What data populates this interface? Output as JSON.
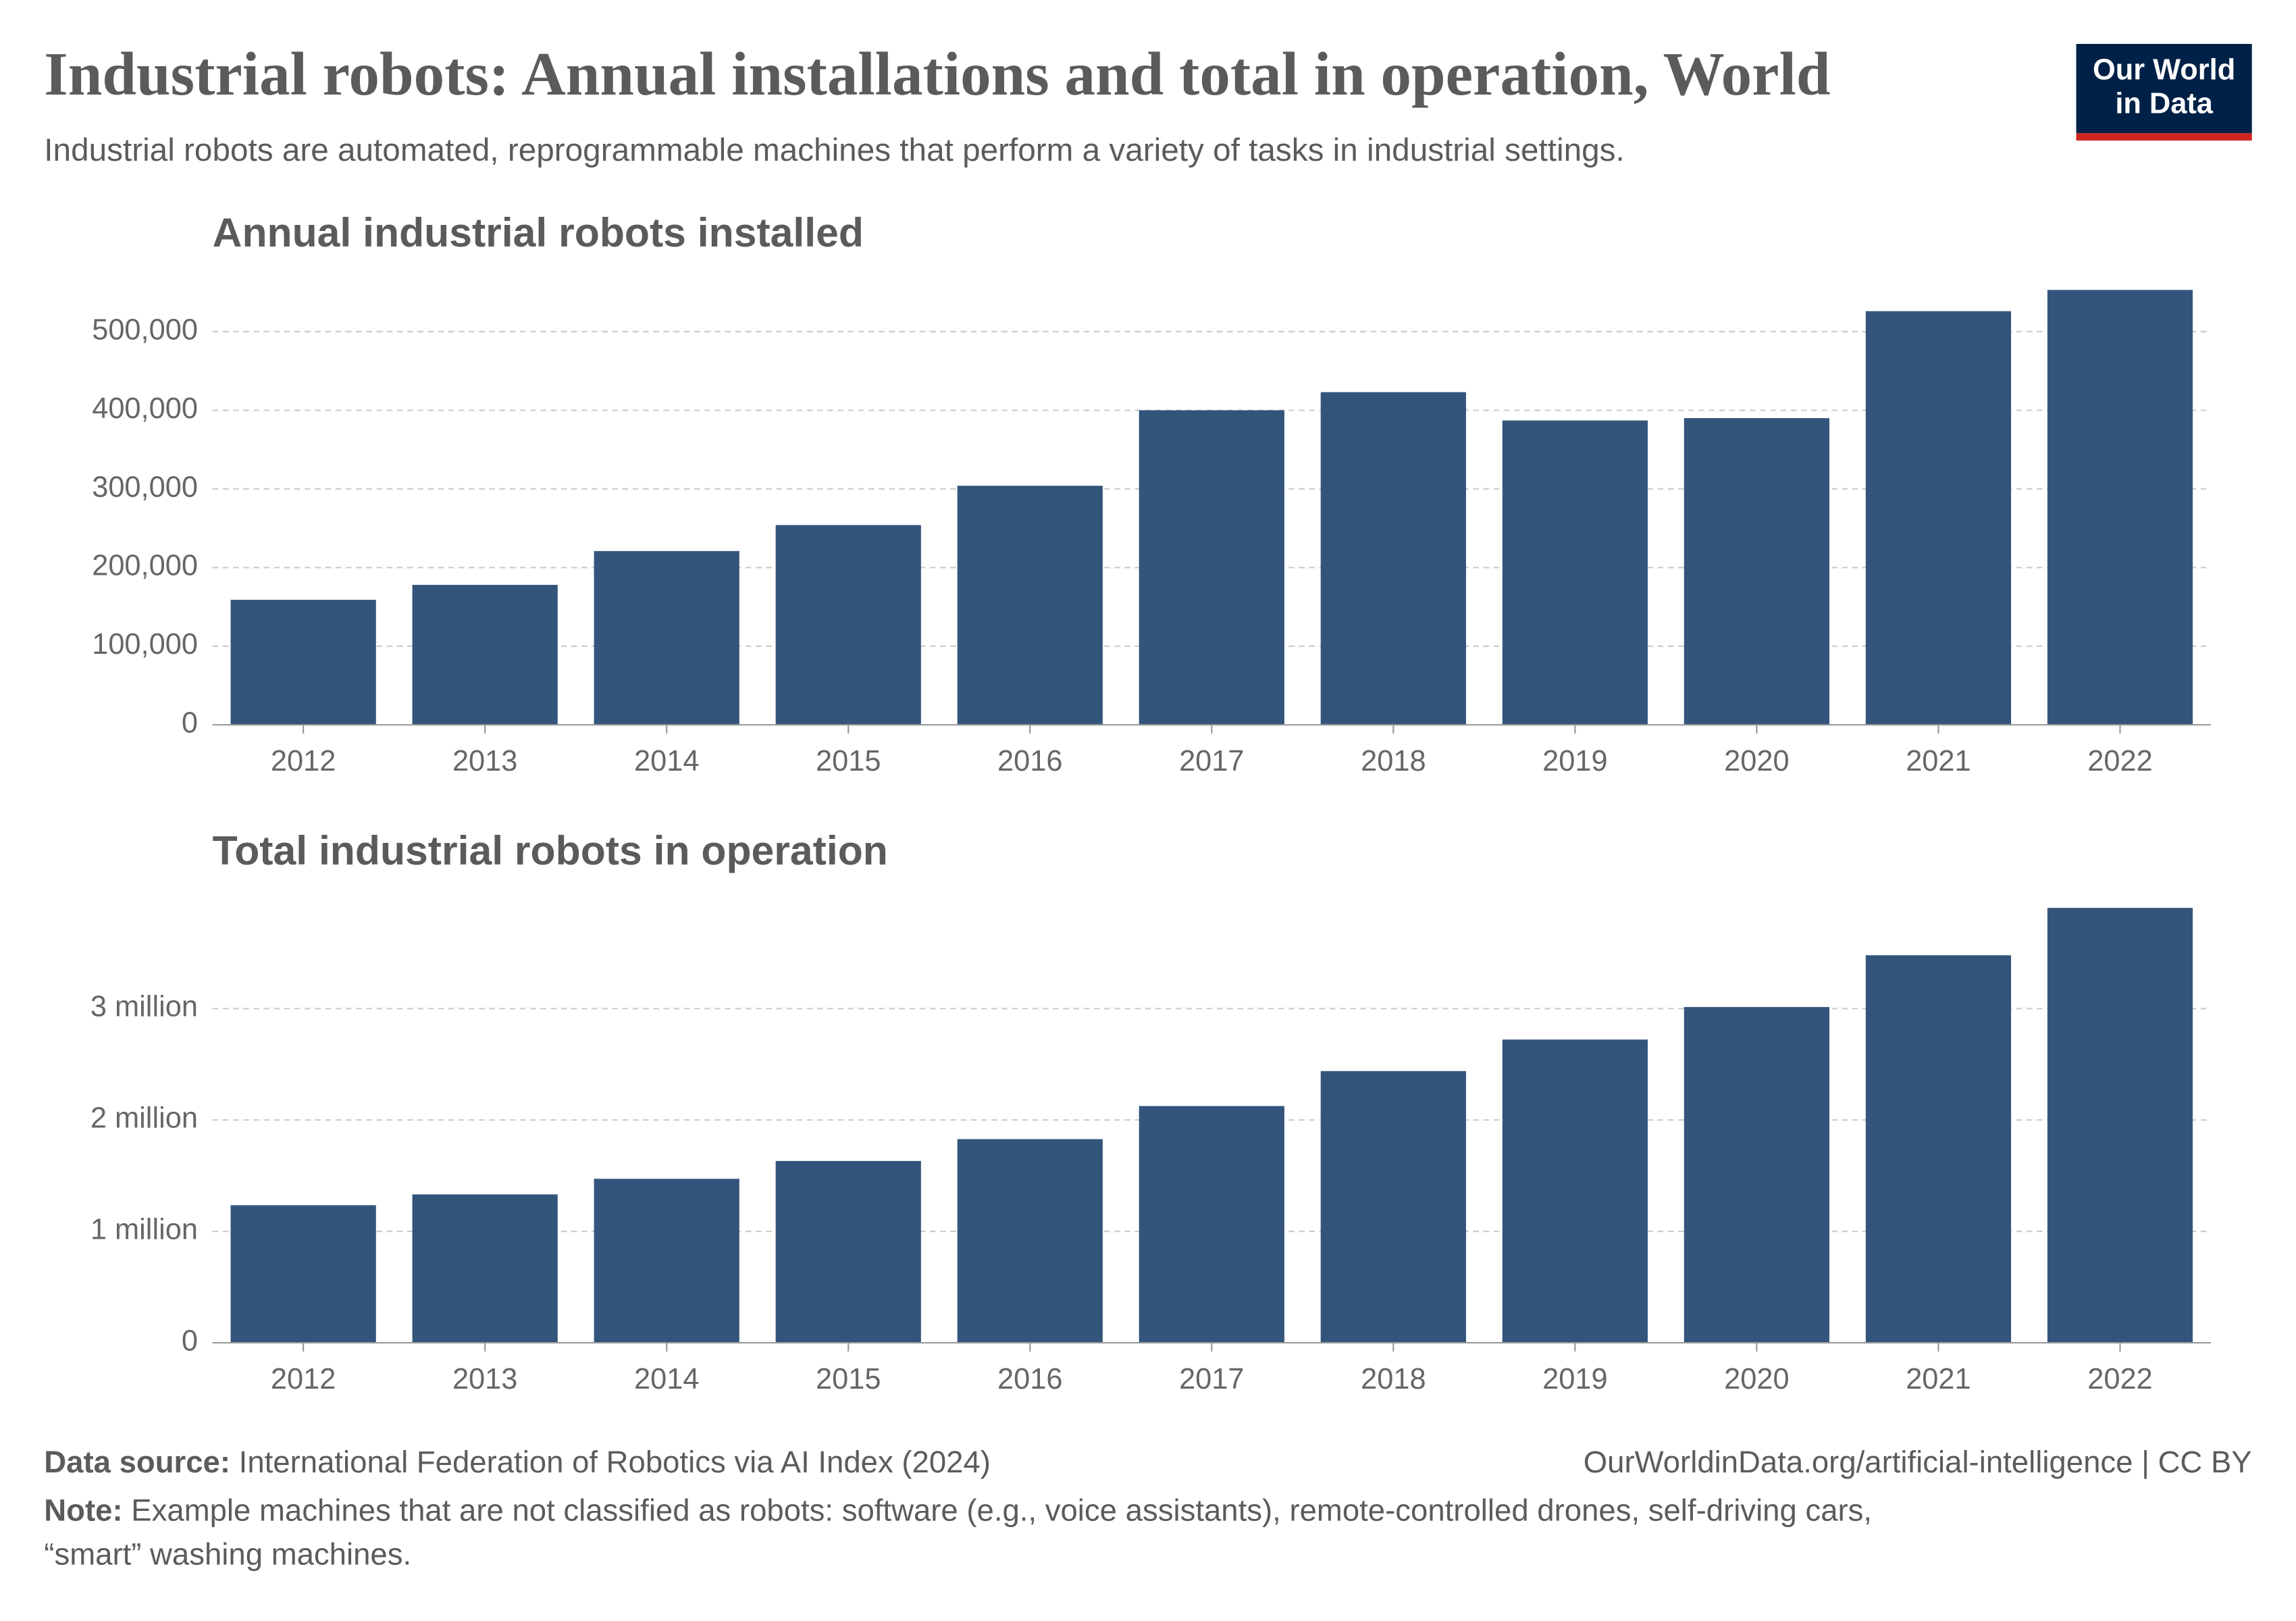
{
  "header": {
    "title": "Industrial robots: Annual installations and total in operation, World",
    "subtitle": "Industrial robots are automated, reprogrammable machines that perform a variety of tasks in industrial settings.",
    "logo": [
      "Our World",
      "in Data"
    ]
  },
  "chart_data": [
    {
      "type": "bar",
      "title": "Annual industrial robots installed",
      "categories": [
        "2012",
        "2013",
        "2014",
        "2015",
        "2016",
        "2017",
        "2018",
        "2019",
        "2020",
        "2021",
        "2022"
      ],
      "values": [
        159000,
        178000,
        221000,
        254000,
        304000,
        400000,
        423000,
        387000,
        390000,
        526000,
        553000
      ],
      "color": "#33557c",
      "ylim": [
        0,
        553000
      ],
      "yticks": [
        0,
        {
          "value": 100000,
          "label": "100,000"
        },
        {
          "value": 200000,
          "label": "200,000"
        },
        {
          "value": 300000,
          "label": "300,000"
        },
        {
          "value": 400000,
          "label": "400,000"
        },
        {
          "value": 500000,
          "label": "500,000"
        }
      ],
      "grid": true
    },
    {
      "type": "bar",
      "title": "Total industrial robots in operation",
      "categories": [
        "2012",
        "2013",
        "2014",
        "2015",
        "2016",
        "2017",
        "2018",
        "2019",
        "2020",
        "2021",
        "2022"
      ],
      "values": [
        1235000,
        1332000,
        1472000,
        1632000,
        1828000,
        2125000,
        2439000,
        2722000,
        3014000,
        3479000,
        3904000
      ],
      "color": "#33557c",
      "ylim": [
        0,
        3904000
      ],
      "yticks": [
        0,
        {
          "value": 1000000,
          "label": "1 million"
        },
        {
          "value": 2000000,
          "label": "2 million"
        },
        {
          "value": 3000000,
          "label": "3 million"
        }
      ],
      "grid": true
    }
  ],
  "footer": {
    "source_label": "Data source:",
    "source": "International Federation of Robotics via AI Index (2024)",
    "url": "OurWorldinData.org/artificial-intelligence | CC BY",
    "note_label": "Note:",
    "note_lines": [
      "Example machines that are not classified as robots: software (e.g., voice assistants), remote-controlled drones, self-driving cars,",
      "“smart” washing machines."
    ]
  }
}
